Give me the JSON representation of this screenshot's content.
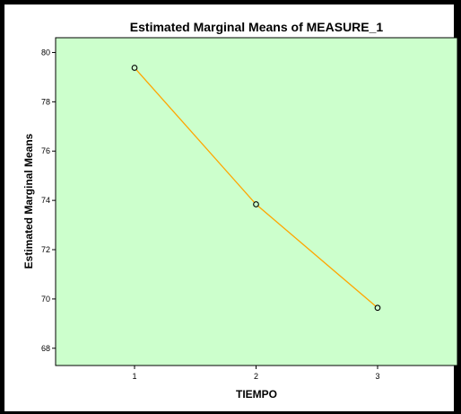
{
  "chart_data": {
    "type": "line",
    "title": "Estimated Marginal Means of MEASURE_1",
    "xlabel": "TIEMPO",
    "ylabel": "Estimated Marginal Means",
    "categories": [
      "1",
      "2",
      "3"
    ],
    "series": [
      {
        "values": [
          79.38,
          73.84,
          69.64
        ]
      }
    ],
    "ylim": [
      67.3,
      80.6
    ],
    "yticks": [
      68,
      70,
      72,
      74,
      76,
      78,
      80
    ],
    "grid": false,
    "legend": "none",
    "colors": {
      "plot_background": "#ccffcc",
      "line": "#ffa500",
      "marker_fill": "#ccffcc",
      "marker_edge": "#000000",
      "border": "#000000"
    }
  }
}
